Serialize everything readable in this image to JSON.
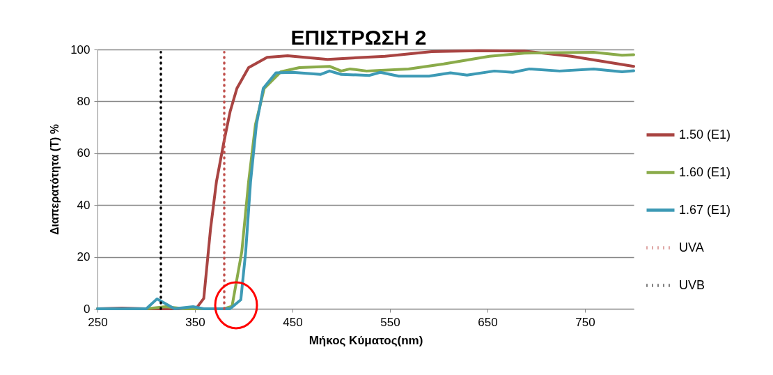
{
  "chart_data": {
    "type": "line",
    "title": "ΕΠΙΣΤΡΩΣΗ 2",
    "xlabel": "Μήκος Κύματος(nm)",
    "ylabel": "Διαπερατότητα (T) %",
    "xlim": [
      250,
      800
    ],
    "xticks": [
      250,
      350,
      450,
      550,
      650,
      750
    ],
    "ylim": [
      0,
      100
    ],
    "yticks": [
      0,
      20,
      40,
      60,
      80,
      100
    ],
    "grid": "y",
    "legend": "right",
    "marker": "none",
    "series": [
      {
        "name": "1.50 (E1)",
        "color": "#a94442",
        "line_style": "solid",
        "x": [
          250,
          275,
          300,
          330,
          352,
          359,
          366,
          372,
          380,
          386,
          393,
          405,
          424,
          445,
          486,
          545,
          593,
          641,
          688,
          736,
          800
        ],
        "values": [
          0,
          0.3,
          0,
          0,
          0.5,
          4,
          31,
          49,
          65,
          76,
          85,
          93,
          97,
          97.6,
          96.2,
          97.4,
          99.2,
          99.5,
          99.4,
          97.4,
          93.5
        ]
      },
      {
        "name": "1.60 (E1)",
        "color": "#8aab4a",
        "line_style": "solid",
        "x": [
          250,
          300,
          320,
          340,
          380,
          388,
          398,
          405,
          412,
          421,
          438,
          457,
          488,
          500,
          509,
          526,
          569,
          605,
          652,
          688,
          759,
          788,
          800
        ],
        "values": [
          0,
          0,
          0.8,
          0,
          0,
          1,
          22,
          49,
          71,
          85,
          91.4,
          93,
          93.5,
          91.7,
          92.5,
          91.7,
          92.5,
          94.4,
          97.4,
          98.6,
          98.9,
          97.8,
          98
        ]
      },
      {
        "name": "1.67  (E1)",
        "color": "#3d9ab5",
        "line_style": "solid",
        "x": [
          250,
          300,
          311,
          329,
          348,
          359,
          386,
          397,
          402,
          407,
          413,
          420,
          433,
          450,
          479,
          488,
          500,
          529,
          540,
          559,
          590,
          612,
          629,
          657,
          676,
          693,
          724,
          759,
          788,
          800
        ],
        "values": [
          0,
          0,
          3.8,
          0,
          0.8,
          0,
          0,
          3.5,
          22,
          49,
          71,
          85,
          91,
          91.2,
          90.4,
          91.7,
          90.4,
          90,
          91.2,
          89.7,
          89.7,
          91,
          90.1,
          91.7,
          91.2,
          92.5,
          91.7,
          92.5,
          91.4,
          91.8
        ]
      },
      {
        "name": "UVA",
        "color": "#c0504d",
        "line_style": "dotted",
        "x": [
          380,
          380
        ],
        "values": [
          0,
          99
        ]
      },
      {
        "name": "UVB",
        "color": "#000000",
        "line_style": "dotted",
        "x": [
          315,
          315
        ],
        "values": [
          0,
          99
        ]
      }
    ]
  }
}
